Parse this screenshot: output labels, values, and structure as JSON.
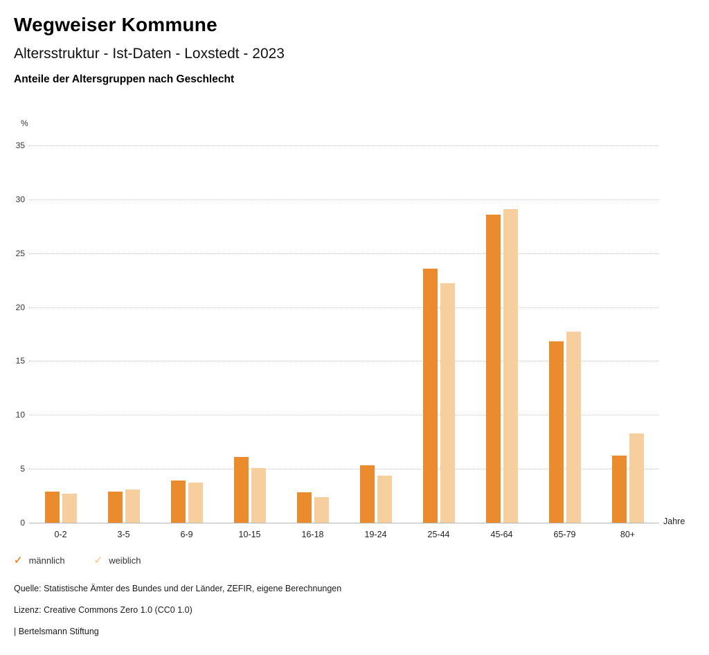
{
  "header": {
    "title": "Wegweiser Kommune",
    "subtitle": "Altersstruktur - Ist-Daten - Loxstedt - 2023",
    "heading": "Anteile der Altersgruppen nach Geschlecht"
  },
  "chart_data": {
    "type": "bar",
    "title": "Anteile der Altersgruppen nach Geschlecht",
    "unit_label": "%",
    "x_unit_label": "Jahre",
    "categories": [
      "0-2",
      "3-5",
      "6-9",
      "10-15",
      "16-18",
      "19-24",
      "25-44",
      "45-64",
      "65-79",
      "80+"
    ],
    "series": [
      {
        "name": "männlich",
        "color": "#EA8C2E",
        "values": [
          2.9,
          2.9,
          3.9,
          6.1,
          2.8,
          5.3,
          23.6,
          28.6,
          16.8,
          6.2
        ]
      },
      {
        "name": "weiblich",
        "color": "#F7CF9E",
        "values": [
          2.7,
          3.1,
          3.7,
          5.1,
          2.4,
          4.4,
          22.2,
          29.1,
          17.7,
          8.3
        ]
      }
    ],
    "ylim": [
      0,
      35
    ],
    "yticks": [
      0,
      5,
      10,
      15,
      20,
      25,
      30,
      35
    ],
    "grid": true,
    "legend_position": "bottom"
  },
  "footer": {
    "source": "Quelle: Statistische Ämter des Bundes und der Länder, ZEFIR, eigene Berechnungen",
    "license": "Lizenz: Creative Commons Zero 1.0 (CC0 1.0)",
    "attribution": "| Bertelsmann Stiftung"
  }
}
